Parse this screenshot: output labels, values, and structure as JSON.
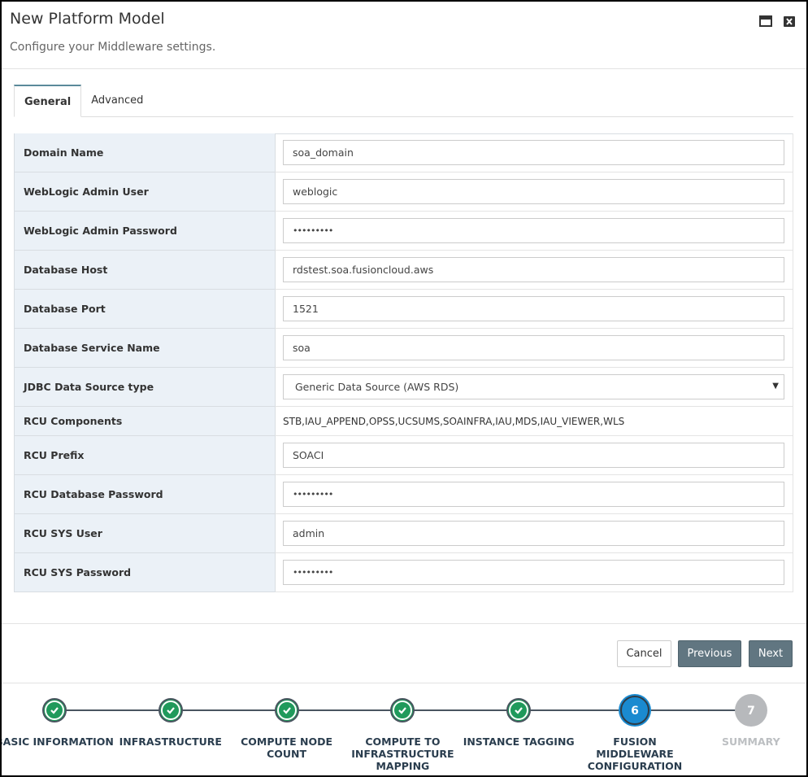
{
  "header": {
    "title": "New Platform Model",
    "subtitle": "Configure your Middleware settings."
  },
  "tabs": [
    {
      "label": "General",
      "active": true
    },
    {
      "label": "Advanced",
      "active": false
    }
  ],
  "form": {
    "rows": [
      {
        "label": "Domain Name",
        "value": "soa_domain",
        "kind": "text"
      },
      {
        "label": "WebLogic Admin User",
        "value": "weblogic",
        "kind": "text"
      },
      {
        "label": "WebLogic Admin Password",
        "value": "•••••••••",
        "kind": "password"
      },
      {
        "label": "Database Host",
        "value": "rdstest.soa.fusioncloud.aws",
        "kind": "text"
      },
      {
        "label": "Database Port",
        "value": "1521",
        "kind": "text"
      },
      {
        "label": "Database Service Name",
        "value": "soa",
        "kind": "text"
      },
      {
        "label": "JDBC Data Source type",
        "value": "Generic Data Source (AWS RDS)",
        "kind": "select"
      },
      {
        "label": "RCU Components",
        "value": "STB,IAU_APPEND,OPSS,UCSUMS,SOAINFRA,IAU,MDS,IAU_VIEWER,WLS",
        "kind": "static"
      },
      {
        "label": "RCU Prefix",
        "value": "SOACI",
        "kind": "text"
      },
      {
        "label": "RCU Database Password",
        "value": "•••••••••",
        "kind": "password"
      },
      {
        "label": "RCU SYS User",
        "value": "admin",
        "kind": "text"
      },
      {
        "label": "RCU SYS Password",
        "value": "•••••••••",
        "kind": "password"
      }
    ]
  },
  "buttons": {
    "cancel": "Cancel",
    "previous": "Previous",
    "next": "Next"
  },
  "steps": [
    {
      "label": "BASIC INFORMATION",
      "status": "done"
    },
    {
      "label": "INFRASTRUCTURE",
      "status": "done"
    },
    {
      "label": "COMPUTE NODE COUNT",
      "status": "done"
    },
    {
      "label": "COMPUTE TO INFRASTRUCTURE MAPPING",
      "status": "done"
    },
    {
      "label": "INSTANCE TAGGING",
      "status": "done"
    },
    {
      "label": "FUSION MIDDLEWARE CONFIGURATION",
      "number": 6,
      "status": "current"
    },
    {
      "label": "SUMMARY",
      "number": 7,
      "status": "pending"
    }
  ]
}
